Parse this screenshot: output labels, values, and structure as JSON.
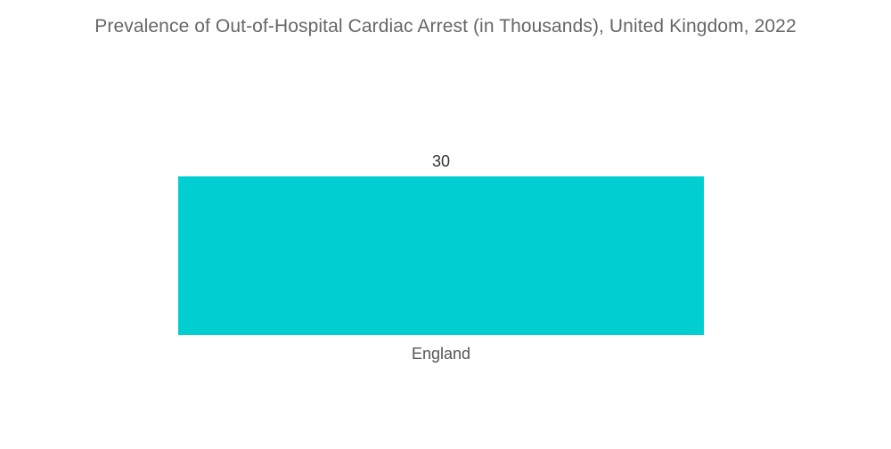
{
  "chart_data": {
    "type": "bar",
    "title": "Prevalence of Out-of-Hospital Cardiac Arrest (in Thousands), United Kingdom, 2022",
    "categories": [
      "England"
    ],
    "values": [
      30
    ],
    "data_labels": [
      "30"
    ],
    "xlabel": "",
    "ylabel": "",
    "ylim": [
      0,
      30
    ],
    "grid": false,
    "legend": "none",
    "colors": [
      "#00CED1"
    ]
  }
}
